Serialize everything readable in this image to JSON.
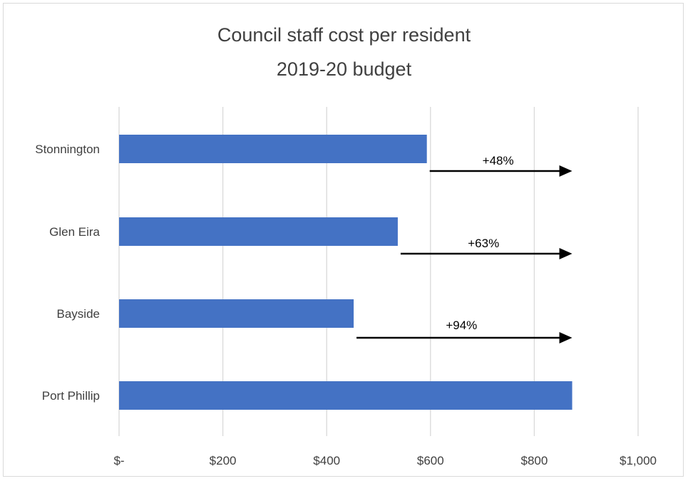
{
  "chart_data": {
    "type": "bar",
    "orientation": "horizontal",
    "title_lines": [
      "Council staff cost per resident",
      "2019-20 budget"
    ],
    "categories": [
      "Stonnington",
      "Glen Eira",
      "Bayside",
      "Port Phillip"
    ],
    "values": [
      593,
      537,
      452,
      873
    ],
    "xlim": [
      0,
      1000
    ],
    "x_ticks": [
      0,
      200,
      400,
      600,
      800,
      1000
    ],
    "x_tick_labels": [
      "$-",
      "$200",
      "$400",
      "$600",
      "$800",
      "$1,000"
    ],
    "grid": "vertical",
    "bar_color": "#4472c4",
    "annotations": [
      {
        "category": "Stonnington",
        "text": "+48%",
        "from": 593,
        "to": 873
      },
      {
        "category": "Glen Eira",
        "text": "+63%",
        "from": 537,
        "to": 873
      },
      {
        "category": "Bayside",
        "text": "+94%",
        "from": 452,
        "to": 873
      }
    ]
  }
}
